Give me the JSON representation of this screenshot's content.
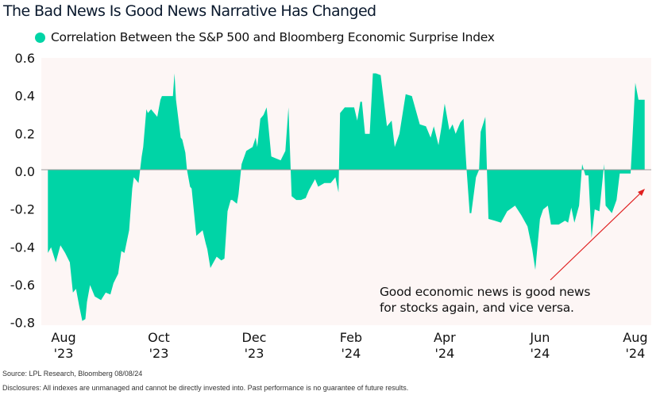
{
  "chart_data": {
    "type": "area",
    "title": "The Bad News Is Good News Narrative Has Changed",
    "legend": {
      "position": "top-left",
      "entries": [
        "Correlation Between the S&P 500 and Bloomberg Economic Surprise Index"
      ]
    },
    "colors": {
      "fill": "#00D4A6",
      "plot_background": "#FDF6F5",
      "zero_line": "#9A9A9A",
      "annotation_arrow": "#E02020"
    },
    "xlabel": "",
    "ylabel": "",
    "ylim": [
      -0.8,
      0.6
    ],
    "yticks": [
      "0.6",
      "0.4",
      "0.2",
      "0.0",
      "-0.2",
      "-0.4",
      "-0.6",
      "-0.8"
    ],
    "xticks": [
      {
        "date": "2023-08-01",
        "line1": "Aug",
        "line2": "'23"
      },
      {
        "date": "2023-10-01",
        "line1": "Oct",
        "line2": "'23"
      },
      {
        "date": "2023-12-01",
        "line1": "Dec",
        "line2": "'23"
      },
      {
        "date": "2024-02-01",
        "line1": "Feb",
        "line2": "'24"
      },
      {
        "date": "2024-04-01",
        "line1": "Apr",
        "line2": "'24"
      },
      {
        "date": "2024-06-01",
        "line1": "Jun",
        "line2": "'24"
      },
      {
        "date": "2024-08-01",
        "line1": "Aug",
        "line2": "'24"
      }
    ],
    "grid": false,
    "series": [
      {
        "name": "Correlation Between the S&P 500 and Bloomberg Economic Surprise Index",
        "points": [
          [
            "2023-07-22",
            -0.44
          ],
          [
            "2023-07-24",
            -0.41
          ],
          [
            "2023-07-27",
            -0.49
          ],
          [
            "2023-07-30",
            -0.4
          ],
          [
            "2023-08-02",
            -0.44
          ],
          [
            "2023-08-05",
            -0.49
          ],
          [
            "2023-08-07",
            -0.65
          ],
          [
            "2023-08-09",
            -0.63
          ],
          [
            "2023-08-11",
            -0.72
          ],
          [
            "2023-08-13",
            -0.8
          ],
          [
            "2023-08-15",
            -0.79
          ],
          [
            "2023-08-16",
            -0.7
          ],
          [
            "2023-08-18",
            -0.61
          ],
          [
            "2023-08-21",
            -0.67
          ],
          [
            "2023-08-25",
            -0.69
          ],
          [
            "2023-08-28",
            -0.65
          ],
          [
            "2023-08-31",
            -0.66
          ],
          [
            "2023-09-02",
            -0.6
          ],
          [
            "2023-09-05",
            -0.55
          ],
          [
            "2023-09-07",
            -0.43
          ],
          [
            "2023-09-09",
            -0.44
          ],
          [
            "2023-09-12",
            -0.32
          ],
          [
            "2023-09-14",
            -0.1
          ],
          [
            "2023-09-15",
            -0.04
          ],
          [
            "2023-09-18",
            -0.07
          ],
          [
            "2023-09-20",
            0.07
          ],
          [
            "2023-09-21",
            0.12
          ],
          [
            "2023-09-23",
            0.32
          ],
          [
            "2023-09-24",
            0.3
          ],
          [
            "2023-09-26",
            0.32
          ],
          [
            "2023-09-30",
            0.28
          ],
          [
            "2023-10-02",
            0.37
          ],
          [
            "2023-10-03",
            0.39
          ],
          [
            "2023-10-08",
            0.39
          ],
          [
            "2023-10-10",
            0.39
          ],
          [
            "2023-10-11",
            0.51
          ],
          [
            "2023-10-12",
            0.37
          ],
          [
            "2023-10-15",
            0.17
          ],
          [
            "2023-10-16",
            0.16
          ],
          [
            "2023-10-18",
            0.09
          ],
          [
            "2023-10-19",
            0.0
          ],
          [
            "2023-10-21",
            -0.09
          ],
          [
            "2023-10-22",
            -0.1
          ],
          [
            "2023-10-25",
            -0.35
          ],
          [
            "2023-10-29",
            -0.32
          ],
          [
            "2023-10-31",
            -0.39
          ],
          [
            "2023-11-01",
            -0.42
          ],
          [
            "2023-11-03",
            -0.52
          ],
          [
            "2023-11-05",
            -0.49
          ],
          [
            "2023-11-07",
            -0.46
          ],
          [
            "2023-11-10",
            -0.48
          ],
          [
            "2023-11-12",
            -0.47
          ],
          [
            "2023-11-14",
            -0.22
          ],
          [
            "2023-11-16",
            -0.16
          ],
          [
            "2023-11-17",
            -0.16
          ],
          [
            "2023-11-20",
            -0.18
          ],
          [
            "2023-11-21",
            -0.13
          ],
          [
            "2023-11-23",
            0.03
          ],
          [
            "2023-11-26",
            0.1
          ],
          [
            "2023-11-30",
            0.12
          ],
          [
            "2023-12-02",
            0.17
          ],
          [
            "2023-12-03",
            0.12
          ],
          [
            "2023-12-05",
            0.27
          ],
          [
            "2023-12-07",
            0.29
          ],
          [
            "2023-12-09",
            0.33
          ],
          [
            "2023-12-12",
            0.07
          ],
          [
            "2023-12-15",
            0.06
          ],
          [
            "2023-12-18",
            0.05
          ],
          [
            "2023-12-21",
            0.1
          ],
          [
            "2023-12-23",
            0.33
          ],
          [
            "2023-12-25",
            -0.14
          ],
          [
            "2023-12-28",
            -0.16
          ],
          [
            "2023-12-31",
            -0.16
          ],
          [
            "2024-01-03",
            -0.15
          ],
          [
            "2024-01-05",
            -0.11
          ],
          [
            "2024-01-09",
            -0.05
          ],
          [
            "2024-01-11",
            -0.09
          ],
          [
            "2024-01-15",
            -0.07
          ],
          [
            "2024-01-16",
            -0.07
          ],
          [
            "2024-01-19",
            -0.07
          ],
          [
            "2024-01-22",
            -0.04
          ],
          [
            "2024-01-24",
            -0.12
          ],
          [
            "2024-01-25",
            0.3
          ],
          [
            "2024-01-28",
            0.33
          ],
          [
            "2024-02-03",
            0.33
          ],
          [
            "2024-02-05",
            0.26
          ],
          [
            "2024-02-07",
            0.36
          ],
          [
            "2024-02-08",
            0.36
          ],
          [
            "2024-02-10",
            0.19
          ],
          [
            "2024-02-13",
            0.19
          ],
          [
            "2024-02-15",
            0.51
          ],
          [
            "2024-02-17",
            0.51
          ],
          [
            "2024-02-20",
            0.5
          ],
          [
            "2024-02-24",
            0.23
          ],
          [
            "2024-02-27",
            0.26
          ],
          [
            "2024-02-29",
            0.12
          ],
          [
            "2024-03-03",
            0.19
          ],
          [
            "2024-03-07",
            0.4
          ],
          [
            "2024-03-11",
            0.39
          ],
          [
            "2024-03-16",
            0.24
          ],
          [
            "2024-03-20",
            0.23
          ],
          [
            "2024-03-23",
            0.17
          ],
          [
            "2024-03-25",
            0.23
          ],
          [
            "2024-03-28",
            0.13
          ],
          [
            "2024-03-30",
            0.23
          ],
          [
            "2024-04-01",
            0.35
          ],
          [
            "2024-04-04",
            0.21
          ],
          [
            "2024-04-06",
            0.24
          ],
          [
            "2024-04-08",
            0.19
          ],
          [
            "2024-04-11",
            0.25
          ],
          [
            "2024-04-13",
            0.27
          ],
          [
            "2024-04-15",
            0.0
          ],
          [
            "2024-04-17",
            -0.23
          ],
          [
            "2024-04-18",
            -0.23
          ],
          [
            "2024-04-21",
            -0.04
          ],
          [
            "2024-04-23",
            0.0
          ],
          [
            "2024-04-24",
            0.2
          ],
          [
            "2024-04-27",
            0.28
          ],
          [
            "2024-04-28",
            0.0
          ],
          [
            "2024-04-29",
            -0.26
          ],
          [
            "2024-05-03",
            -0.27
          ],
          [
            "2024-05-07",
            -0.28
          ],
          [
            "2024-05-11",
            -0.22
          ],
          [
            "2024-05-16",
            -0.19
          ],
          [
            "2024-05-20",
            -0.24
          ],
          [
            "2024-05-24",
            -0.3
          ],
          [
            "2024-05-27",
            -0.42
          ],
          [
            "2024-05-29",
            -0.53
          ],
          [
            "2024-06-01",
            -0.26
          ],
          [
            "2024-06-03",
            -0.21
          ],
          [
            "2024-06-06",
            -0.19
          ],
          [
            "2024-06-08",
            -0.29
          ],
          [
            "2024-06-13",
            -0.29
          ],
          [
            "2024-06-17",
            -0.27
          ],
          [
            "2024-06-19",
            -0.28
          ],
          [
            "2024-06-21",
            -0.2
          ],
          [
            "2024-06-23",
            -0.28
          ],
          [
            "2024-06-26",
            -0.19
          ],
          [
            "2024-06-28",
            0.03
          ],
          [
            "2024-06-30",
            -0.03
          ],
          [
            "2024-07-02",
            -0.03
          ],
          [
            "2024-07-04",
            -0.36
          ],
          [
            "2024-07-06",
            -0.21
          ],
          [
            "2024-07-09",
            -0.22
          ],
          [
            "2024-07-12",
            0.03
          ],
          [
            "2024-07-13",
            -0.19
          ],
          [
            "2024-07-17",
            -0.23
          ],
          [
            "2024-07-20",
            -0.16
          ],
          [
            "2024-07-22",
            -0.02
          ],
          [
            "2024-07-25",
            -0.02
          ],
          [
            "2024-07-29",
            -0.02
          ],
          [
            "2024-07-30",
            0.14
          ],
          [
            "2024-08-01",
            0.46
          ],
          [
            "2024-08-03",
            0.37
          ],
          [
            "2024-08-06",
            0.37
          ],
          [
            "2024-08-07",
            0.37
          ]
        ]
      }
    ],
    "annotations": [
      {
        "lines": [
          "Good economic news is good news",
          "for stocks again, and vice versa."
        ],
        "arrow": true
      }
    ]
  },
  "footer": {
    "source": "Source: LPL Research, Bloomberg 08/08/24",
    "disclosures": "Disclosures: All indexes are unmanaged and cannot be directly invested into. Past performance is no guarantee of future results."
  }
}
